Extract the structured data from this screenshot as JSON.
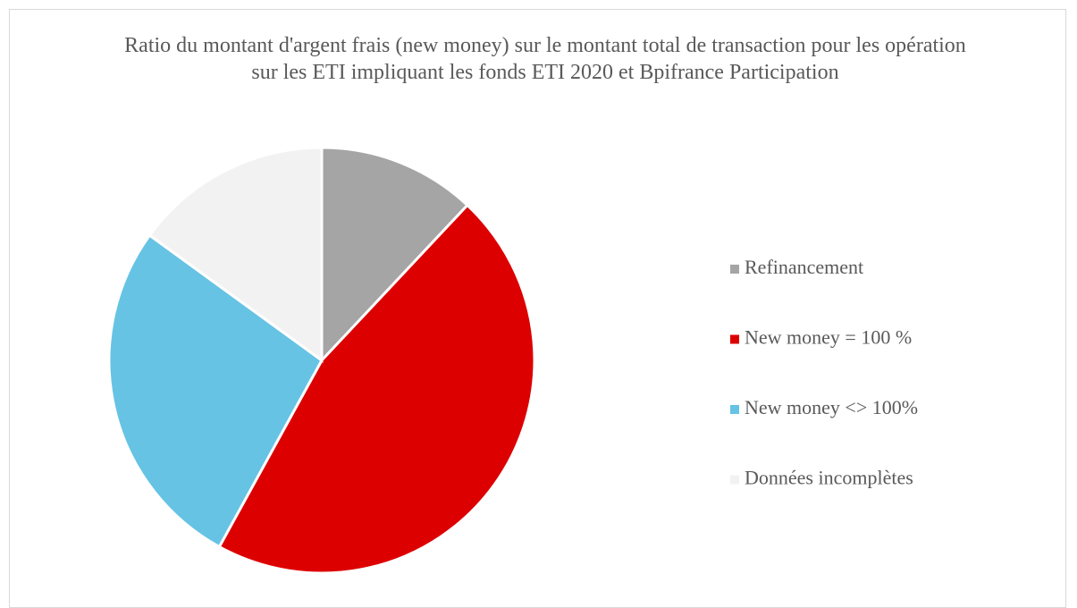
{
  "chart_data": {
    "type": "pie",
    "title": "Ratio du montant d'argent frais (new money) sur le montant total de transaction pour les opération sur les ETI impliquant les fonds ETI 2020 et Bpifrance Participation",
    "categories": [
      "Refinancement",
      "New money = 100 %",
      "New money <> 100%",
      "Données incomplètes"
    ],
    "values": [
      12,
      46,
      27,
      15
    ],
    "colors": [
      "#a5a5a5",
      "#dd0000",
      "#66c3e4",
      "#f2f2f2"
    ],
    "legend": "right"
  }
}
